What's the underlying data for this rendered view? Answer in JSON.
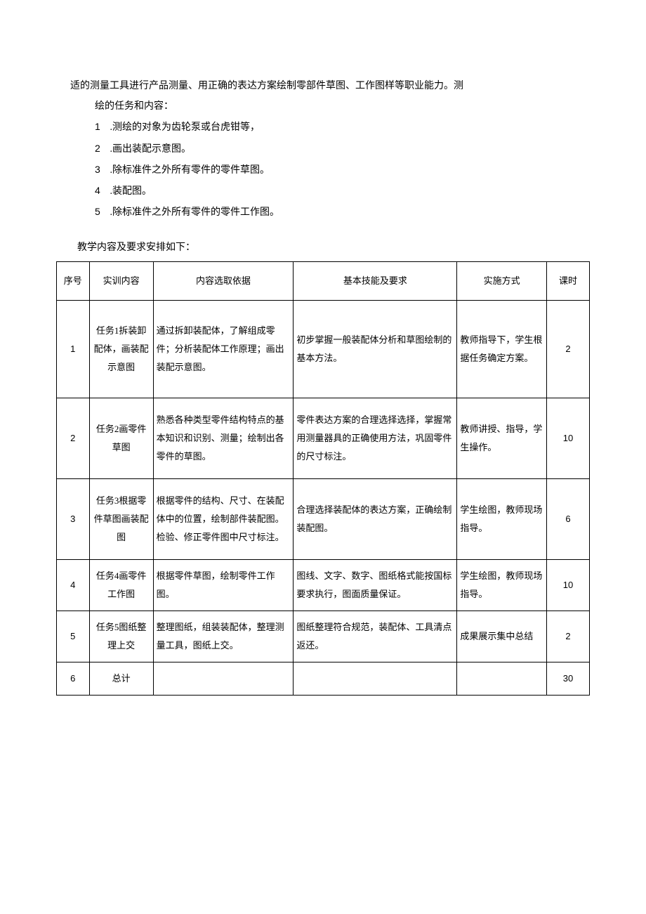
{
  "intro": {
    "line1": "适的测量工具进行产品测量、用正确的表达方案绘制零部件草图、工作图样等职业能力。测",
    "line2": "绘的任务和内容："
  },
  "list": [
    {
      "num": "1",
      "text": ".测绘的对象为齿轮泵或台虎钳等，"
    },
    {
      "num": "2",
      "text": ".画出装配示意图。"
    },
    {
      "num": "3",
      "text": ".除标准件之外所有零件的零件草图。"
    },
    {
      "num": "4",
      "text": ".装配图。"
    },
    {
      "num": "5",
      "text": ".除标准件之外所有零件的零件工作图。"
    }
  ],
  "table_caption": "教学内容及要求安排如下：",
  "table": {
    "headers": {
      "seq": "序号",
      "content": "实训内容",
      "basis": "内容选取依据",
      "skill": "基本技能及要求",
      "method": "实施方式",
      "hours": "课时"
    },
    "rows": [
      {
        "seq": "1",
        "content": "任务1拆装卸配体，画装配示意图",
        "basis": "通过拆卸装配体，了解组成零件；分析装配体工作原理；画出装配示意图。",
        "skill": "初步掌握一般装配体分析和草图绘制的基本方法。",
        "method": "教师指导下，学生根据任务确定方案。",
        "hours": "2"
      },
      {
        "seq": "2",
        "content": "任务2画零件草图",
        "basis": "熟悉各种类型零件结构特点的基本知识和识别、测量；绘制出各零件的草图。",
        "skill": "零件表达方案的合理选择选择，掌握常用测量器具的正确使用方法，巩固零件的尺寸标注。",
        "method": "教师讲授、指导，学生操作。",
        "hours": "10"
      },
      {
        "seq": "3",
        "content": "任务3根据零件草图画装配图",
        "basis": "根据零件的结构、尺寸、在装配体中的位置，绘制部件装配图。检验、修正零件图中尺寸标注。",
        "skill": "合理选择装配体的表达方案，正确绘制装配图。",
        "method": "学生绘图，教师现场指导。",
        "hours": "6"
      },
      {
        "seq": "4",
        "content": "任务4画零件工作图",
        "basis": "根据零件草图，绘制零件工作图。",
        "skill": "图线、文字、数字、图纸格式能按国标要求执行，图面质量保证。",
        "method": "学生绘图，教师现场指导。",
        "hours": "10"
      },
      {
        "seq": "5",
        "content": "任务5图纸整理上交",
        "basis": "整理图纸，组装装配体，整理测量工具，图纸上交。",
        "skill": "图纸整理符合规范，装配体、工具清点返还。",
        "method": "成果展示集中总结",
        "hours": "2"
      },
      {
        "seq": "6",
        "content": "总计",
        "basis": "",
        "skill": "",
        "method": "",
        "hours": "30"
      }
    ]
  }
}
